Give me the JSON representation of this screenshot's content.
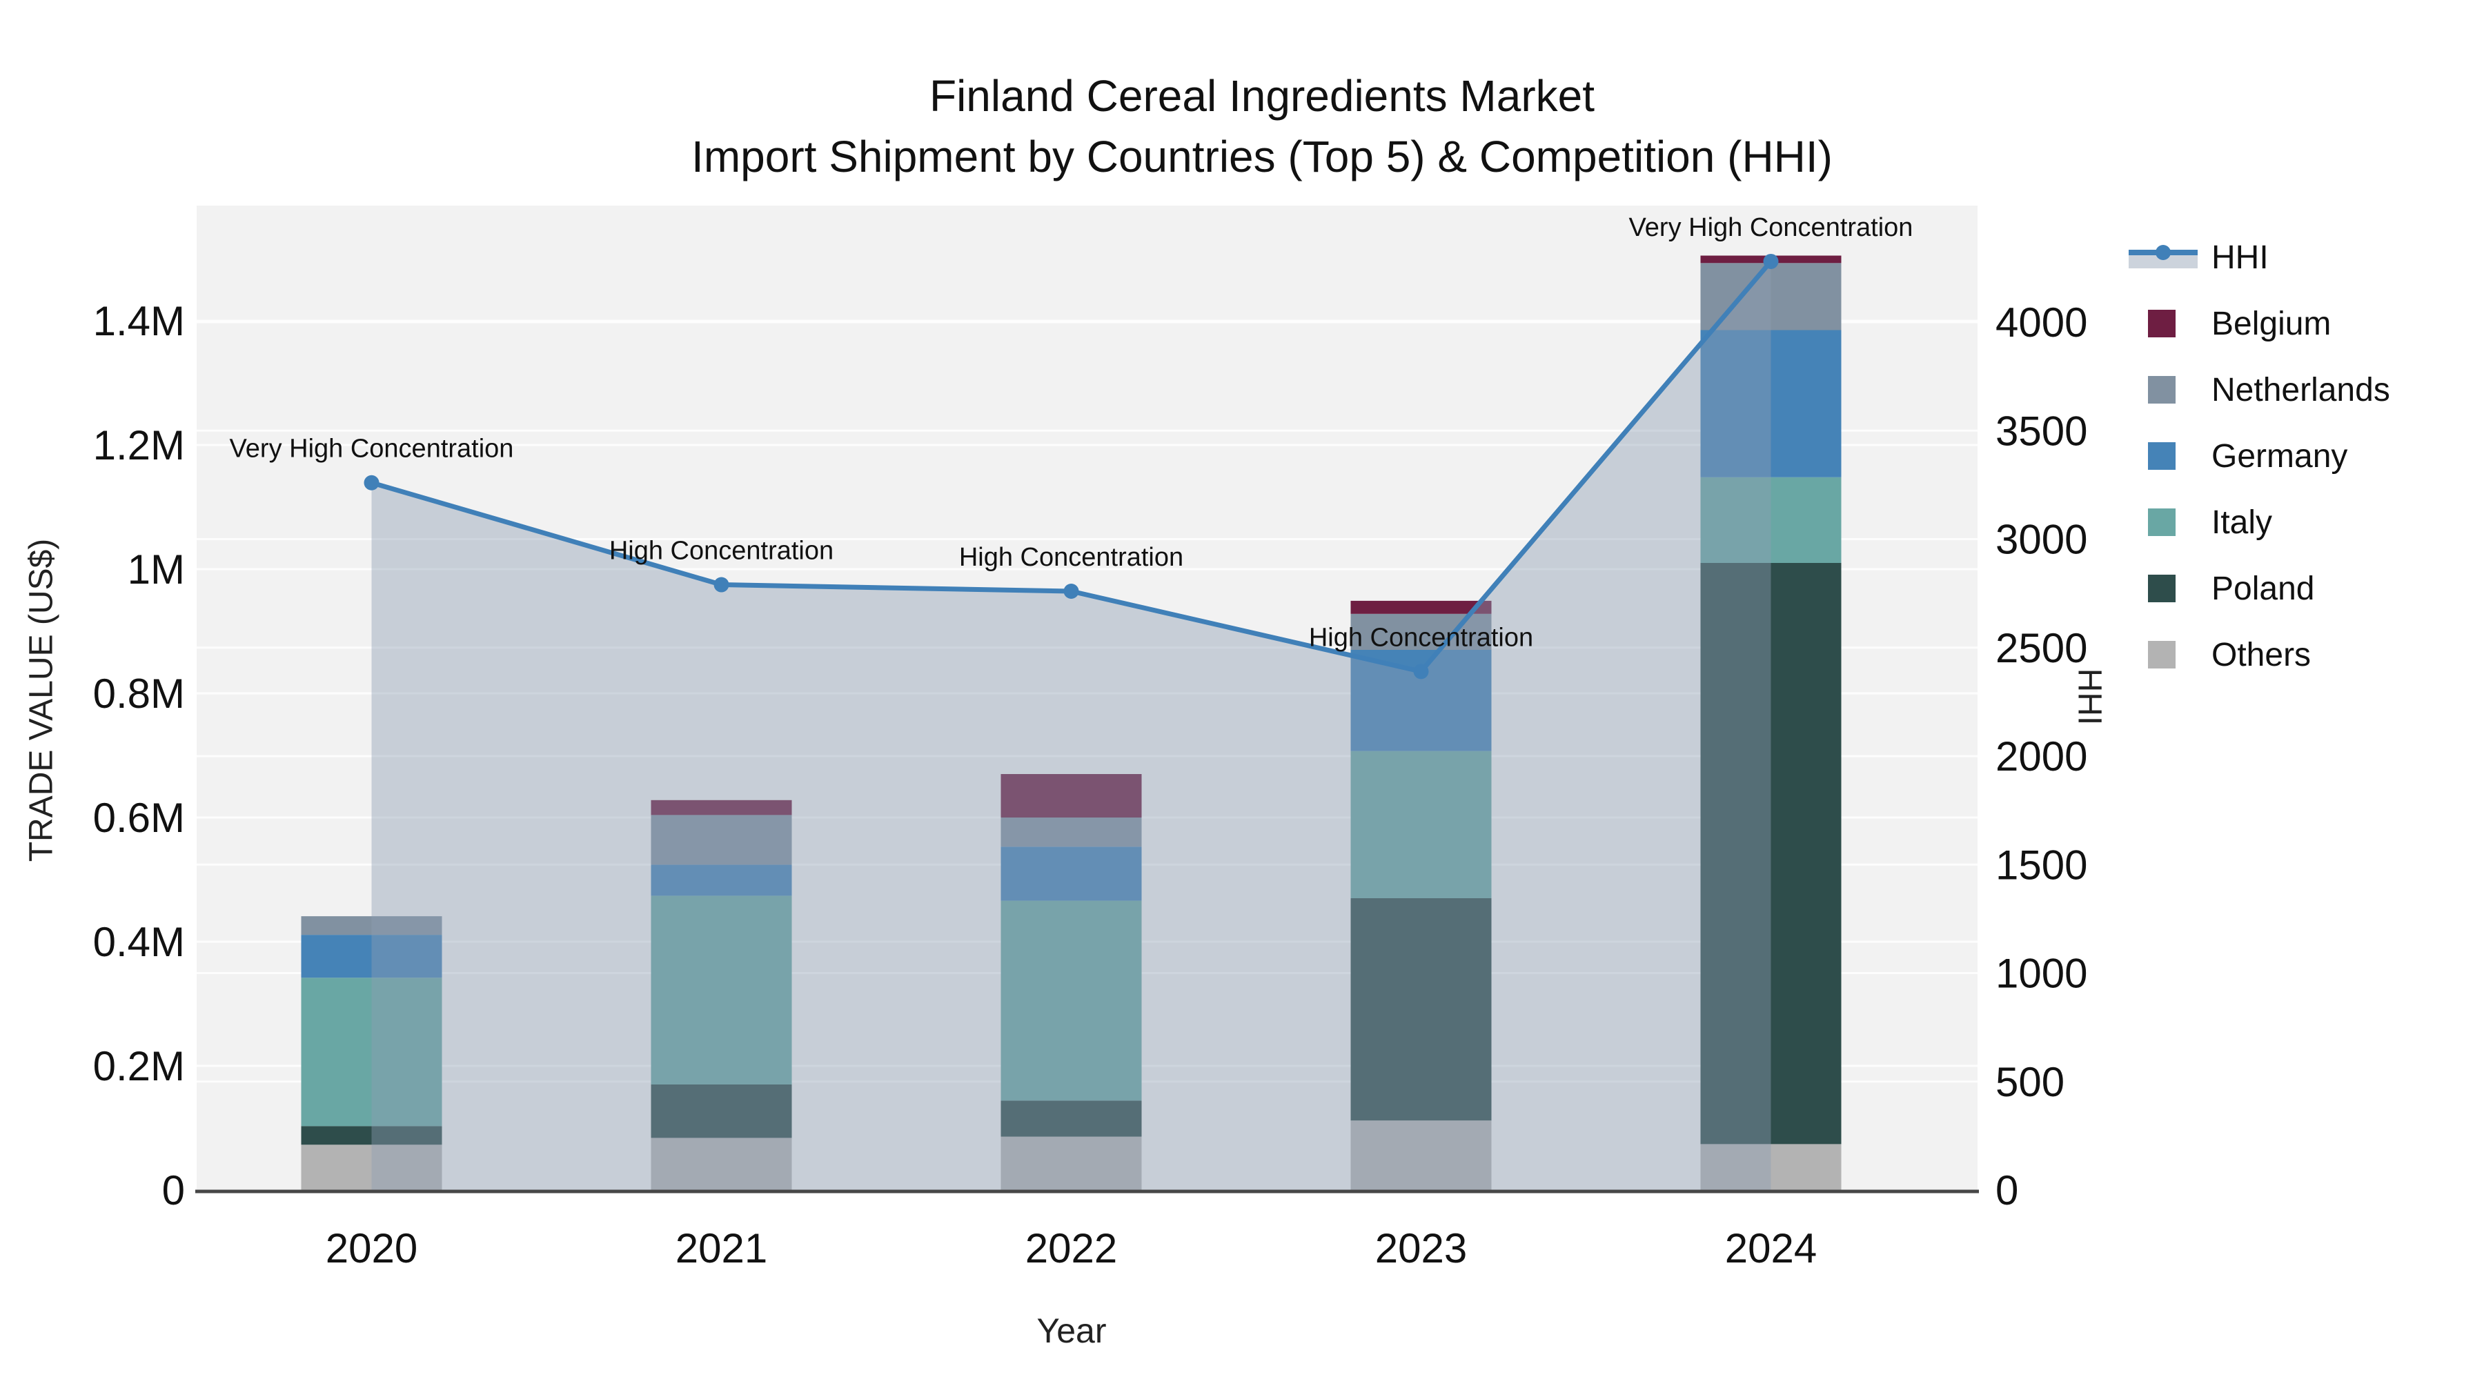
{
  "title": {
    "line1": "Finland Cereal Ingredients Market",
    "line2": "Import Shipment by Countries (Top 5) & Competition (HHI)"
  },
  "chart_data": {
    "type": "combo: stacked-bar + line-with-area",
    "unit": "trade values in US$ millions; HHI on right axis",
    "categories": [
      "2020",
      "2021",
      "2022",
      "2023",
      "2024"
    ],
    "series": [
      {
        "name": "Belgium",
        "color": "#6e1e42",
        "values": [
          0,
          0.024,
          0.07,
          0.021,
          0.012
        ]
      },
      {
        "name": "Netherlands",
        "color": "#8191a1",
        "values": [
          0.03,
          0.08,
          0.047,
          0.058,
          0.108
        ]
      },
      {
        "name": "Germany",
        "color": "#4583b7",
        "values": [
          0.069,
          0.05,
          0.087,
          0.163,
          0.237
        ]
      },
      {
        "name": "Italy",
        "color": "#69a7a4",
        "values": [
          0.239,
          0.304,
          0.322,
          0.237,
          0.138
        ]
      },
      {
        "name": "Poland",
        "color": "#2e4d4b",
        "values": [
          0.03,
          0.086,
          0.058,
          0.358,
          0.936
        ]
      },
      {
        "name": "Others",
        "color": "#b3b3b3",
        "values": [
          0.073,
          0.084,
          0.086,
          0.112,
          0.074
        ]
      }
    ],
    "stack_order_bottom_to_top": [
      "Others",
      "Poland",
      "Italy",
      "Germany",
      "Netherlands",
      "Belgium"
    ],
    "line_series": {
      "name": "HHI",
      "color": "#4080b8",
      "area_fill_color": "rgba(140,158,178,0.42)",
      "values": [
        3260,
        2790,
        2760,
        2390,
        4280
      ]
    },
    "annotations": [
      {
        "category": "2020",
        "text": "Very High Concentration"
      },
      {
        "category": "2021",
        "text": "High Concentration"
      },
      {
        "category": "2022",
        "text": "High Concentration"
      },
      {
        "category": "2023",
        "text": "High Concentration"
      },
      {
        "category": "2024",
        "text": "Very High Concentration"
      }
    ],
    "xlabel": "Year",
    "ylabel_left": "TRADE VALUE (US$)",
    "ylabel_right": "HHI",
    "yticks_left": [
      "0",
      "0.2M",
      "0.4M",
      "0.6M",
      "0.8M",
      "1M",
      "1.2M",
      "1.4M"
    ],
    "yticks_right": [
      "0",
      "500",
      "1000",
      "1500",
      "2000",
      "2500",
      "3000",
      "3500",
      "4000"
    ],
    "ylim_left_usd_millions": [
      0,
      1.586
    ],
    "ylim_right_hhi": [
      0,
      4540
    ],
    "grid": true,
    "legend_position": "right",
    "plot_bg": "#f2f2f2",
    "grid_color": "#ffffff",
    "axis_line_color": "#474747"
  },
  "legend": {
    "items": [
      {
        "label": "HHI",
        "type": "line"
      },
      {
        "label": "Belgium",
        "type": "box"
      },
      {
        "label": "Netherlands",
        "type": "box"
      },
      {
        "label": "Germany",
        "type": "box"
      },
      {
        "label": "Italy",
        "type": "box"
      },
      {
        "label": "Poland",
        "type": "box"
      },
      {
        "label": "Others",
        "type": "box"
      }
    ]
  }
}
